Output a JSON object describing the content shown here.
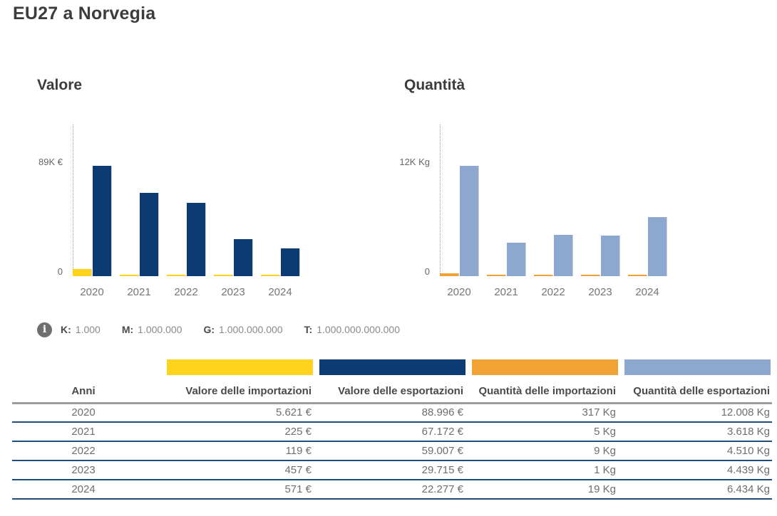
{
  "page_title": "EU27 a Norvegia",
  "colors": {
    "value_imports": "#FFD21C",
    "value_exports": "#0B3B72",
    "qty_imports": "#F0A332",
    "qty_exports": "#8CA8CE"
  },
  "chart_data": [
    {
      "type": "bar",
      "title": "Valore",
      "categories": [
        "2020",
        "2021",
        "2022",
        "2023",
        "2024"
      ],
      "series": [
        {
          "name": "Valore delle importazioni",
          "color_key": "value_imports",
          "values": [
            5621,
            225,
            119,
            457,
            571
          ]
        },
        {
          "name": "Valore delle esportazioni",
          "color_key": "value_exports",
          "values": [
            88996,
            67172,
            59007,
            29715,
            22277
          ]
        }
      ],
      "ylabel": "",
      "y_max_value": 88996,
      "y_max_label": "89K €",
      "y_zero_label": "0",
      "ylim": [
        0,
        88996
      ],
      "grid": false,
      "legend_position": "none"
    },
    {
      "type": "bar",
      "title": "Quantità",
      "categories": [
        "2020",
        "2021",
        "2022",
        "2023",
        "2024"
      ],
      "series": [
        {
          "name": "Quantità delle importazioni",
          "color_key": "qty_imports",
          "values": [
            317,
            5,
            9,
            1,
            19
          ]
        },
        {
          "name": "Quantità delle esportazioni",
          "color_key": "qty_exports",
          "values": [
            12008,
            3618,
            4510,
            4439,
            6434
          ]
        }
      ],
      "ylabel": "",
      "y_max_value": 12008,
      "y_max_label": "12K Kg",
      "y_zero_label": "0",
      "ylim": [
        0,
        12008
      ],
      "grid": false,
      "legend_position": "none"
    }
  ],
  "scale_legend": {
    "items": [
      {
        "label": "K:",
        "value": "1.000"
      },
      {
        "label": "M:",
        "value": "1.000.000"
      },
      {
        "label": "G:",
        "value": "1.000.000.000"
      },
      {
        "label": "T:",
        "value": "1.000.000.000.000"
      }
    ]
  },
  "legend_bars": [
    {
      "label": "Valore delle importazioni",
      "color_key": "value_imports"
    },
    {
      "label": "Valore delle esportazioni",
      "color_key": "value_exports"
    },
    {
      "label": "Quantità delle importazioni",
      "color_key": "qty_imports"
    },
    {
      "label": "Quantità delle esportazioni",
      "color_key": "qty_exports"
    }
  ],
  "table": {
    "columns": [
      "Anni",
      "Valore delle importazioni",
      "Valore delle esportazioni",
      "Quantità delle importazioni",
      "Quantità delle esportazioni"
    ],
    "rows": [
      [
        "2020",
        "5.621 €",
        "88.996 €",
        "317 Kg",
        "12.008 Kg"
      ],
      [
        "2021",
        "225 €",
        "67.172 €",
        "5 Kg",
        "3.618 Kg"
      ],
      [
        "2022",
        "119 €",
        "59.007 €",
        "9 Kg",
        "4.510 Kg"
      ],
      [
        "2023",
        "457 €",
        "29.715 €",
        "1 Kg",
        "4.439 Kg"
      ],
      [
        "2024",
        "571 €",
        "22.277 €",
        "19 Kg",
        "6.434 Kg"
      ]
    ]
  }
}
